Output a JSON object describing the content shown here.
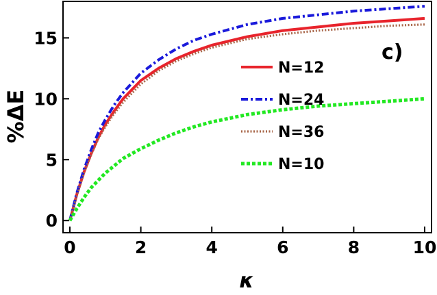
{
  "chart_data": {
    "type": "line",
    "title": "",
    "panel_label": "c)",
    "xlabel": "κ",
    "ylabel": "%ΔE",
    "xlim": [
      0,
      10
    ],
    "ylim": [
      -1,
      18
    ],
    "xticks": [
      "0",
      "2",
      "4",
      "6",
      "8",
      "10"
    ],
    "yticks": [
      "0",
      "5",
      "10",
      "15"
    ],
    "grid": false,
    "legend_position": "center-right",
    "series": [
      {
        "name": "N=12",
        "color": "#e8242c",
        "style": "solid",
        "x": [
          0,
          0.2,
          0.4,
          0.6,
          0.8,
          1,
          1.25,
          1.5,
          2,
          2.5,
          3,
          3.5,
          4,
          5,
          6,
          7,
          8,
          9,
          10
        ],
        "y": [
          0,
          2.2,
          4,
          5.5,
          6.8,
          7.9,
          9.0,
          10.0,
          11.5,
          12.5,
          13.3,
          13.9,
          14.4,
          15.1,
          15.6,
          15.9,
          16.2,
          16.4,
          16.6
        ]
      },
      {
        "name": "N=24",
        "color": "#1a1adb",
        "style": "dashdot",
        "x": [
          0,
          0.2,
          0.4,
          0.6,
          0.8,
          1,
          1.25,
          1.5,
          2,
          2.5,
          3,
          3.5,
          4,
          5,
          6,
          7,
          8,
          9,
          10
        ],
        "y": [
          0,
          2.3,
          4.2,
          5.8,
          7.2,
          8.3,
          9.5,
          10.5,
          12.1,
          13.2,
          14.1,
          14.8,
          15.3,
          16.1,
          16.6,
          16.9,
          17.2,
          17.4,
          17.6
        ]
      },
      {
        "name": "N=36",
        "color": "#a9674a",
        "style": "dotted",
        "x": [
          0,
          0.2,
          0.4,
          0.6,
          0.8,
          1,
          1.25,
          1.5,
          2,
          2.5,
          3,
          3.5,
          4,
          5,
          6,
          7,
          8,
          9,
          10
        ],
        "y": [
          0,
          2.1,
          3.9,
          5.4,
          6.7,
          7.7,
          8.8,
          9.7,
          11.2,
          12.3,
          13.1,
          13.7,
          14.2,
          14.9,
          15.3,
          15.6,
          15.8,
          16.0,
          16.1
        ]
      },
      {
        "name": "N=10",
        "color": "#22e822",
        "style": "dashed",
        "x": [
          0,
          0.2,
          0.4,
          0.6,
          0.8,
          1,
          1.25,
          1.5,
          2,
          2.5,
          3,
          3.5,
          4,
          5,
          6,
          7,
          8,
          9,
          10
        ],
        "y": [
          0,
          1.0,
          1.9,
          2.7,
          3.3,
          3.9,
          4.5,
          5.1,
          5.9,
          6.6,
          7.2,
          7.7,
          8.1,
          8.7,
          9.1,
          9.4,
          9.6,
          9.8,
          10.0
        ]
      }
    ]
  }
}
